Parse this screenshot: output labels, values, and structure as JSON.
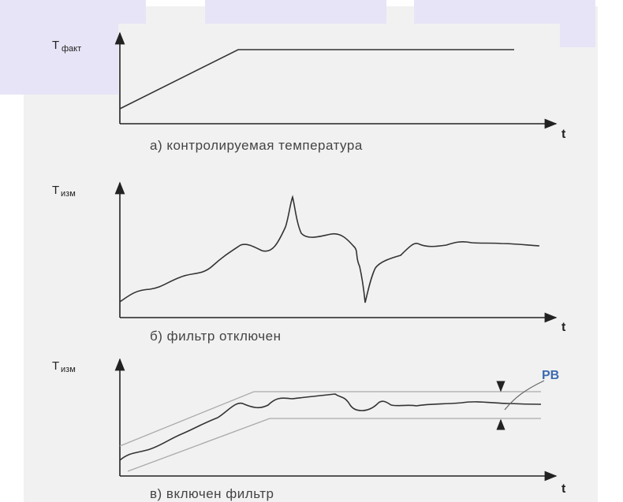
{
  "colors": {
    "background": "#ffffff",
    "panel": "#f1f1f1",
    "header_tab": "#e7e4f7",
    "accent": "#3b6ab0"
  },
  "panels": [
    {
      "y_label_main": "T",
      "y_label_sub": "факт",
      "x_label": "t",
      "caption": "а) контролируемая температура"
    },
    {
      "y_label_main": "T",
      "y_label_sub": "изм",
      "x_label": "t",
      "caption": "б) фильтр отключен"
    },
    {
      "y_label_main": "T",
      "y_label_sub": "изм",
      "x_label": "t",
      "caption": "в) включен фильтр",
      "band_label": "РВ"
    }
  ]
}
